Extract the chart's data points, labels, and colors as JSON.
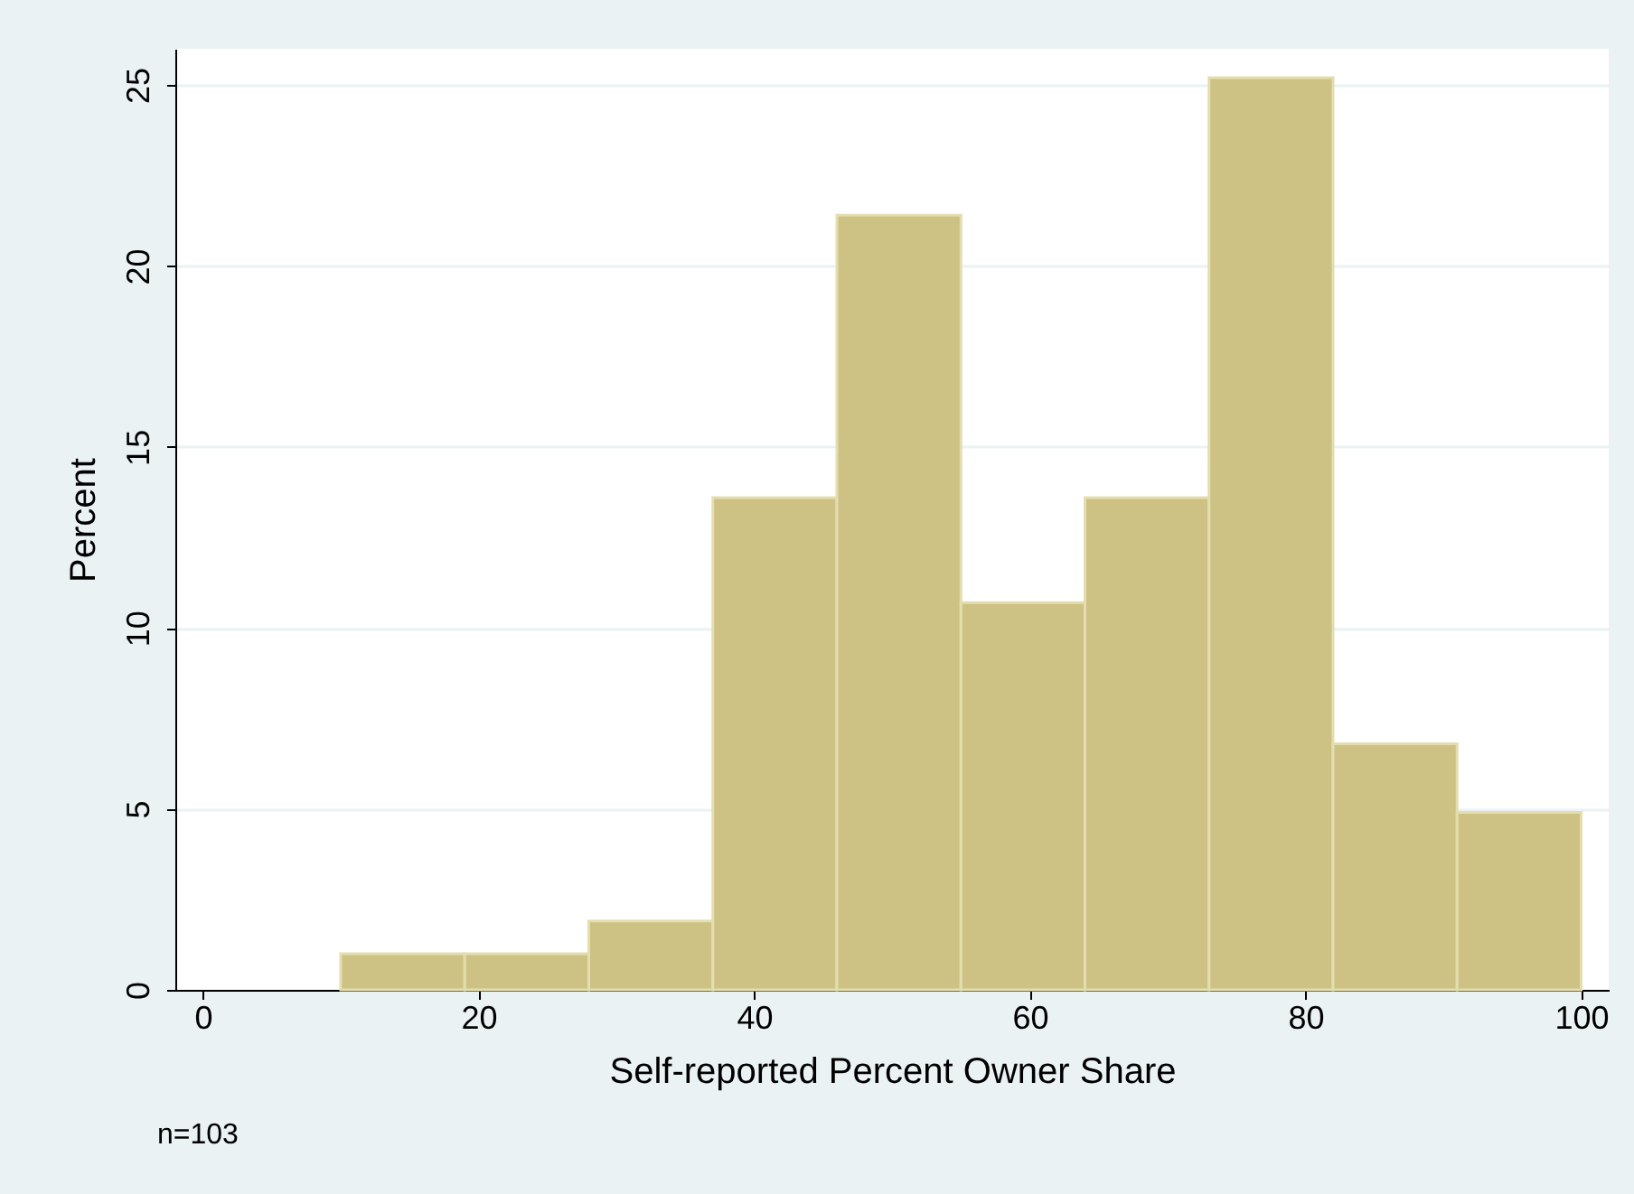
{
  "chart_data": {
    "type": "histogram",
    "xlabel": "Self-reported Percent Owner Share",
    "ylabel": "Percent",
    "bins": [
      10,
      19,
      28,
      37,
      46,
      55,
      64,
      73,
      82,
      91,
      100
    ],
    "values": [
      1.0,
      1.0,
      1.9,
      13.6,
      21.4,
      10.7,
      13.6,
      25.2,
      6.8,
      4.9
    ],
    "color": "#cdc283",
    "xlim": [
      -2,
      102
    ],
    "xticks": [
      0,
      20,
      40,
      60,
      80,
      100
    ],
    "ylim": [
      0,
      26
    ],
    "yticks": [
      0,
      5,
      10,
      15,
      20,
      25
    ],
    "grid": "y",
    "annotations": [
      "n=103"
    ]
  }
}
